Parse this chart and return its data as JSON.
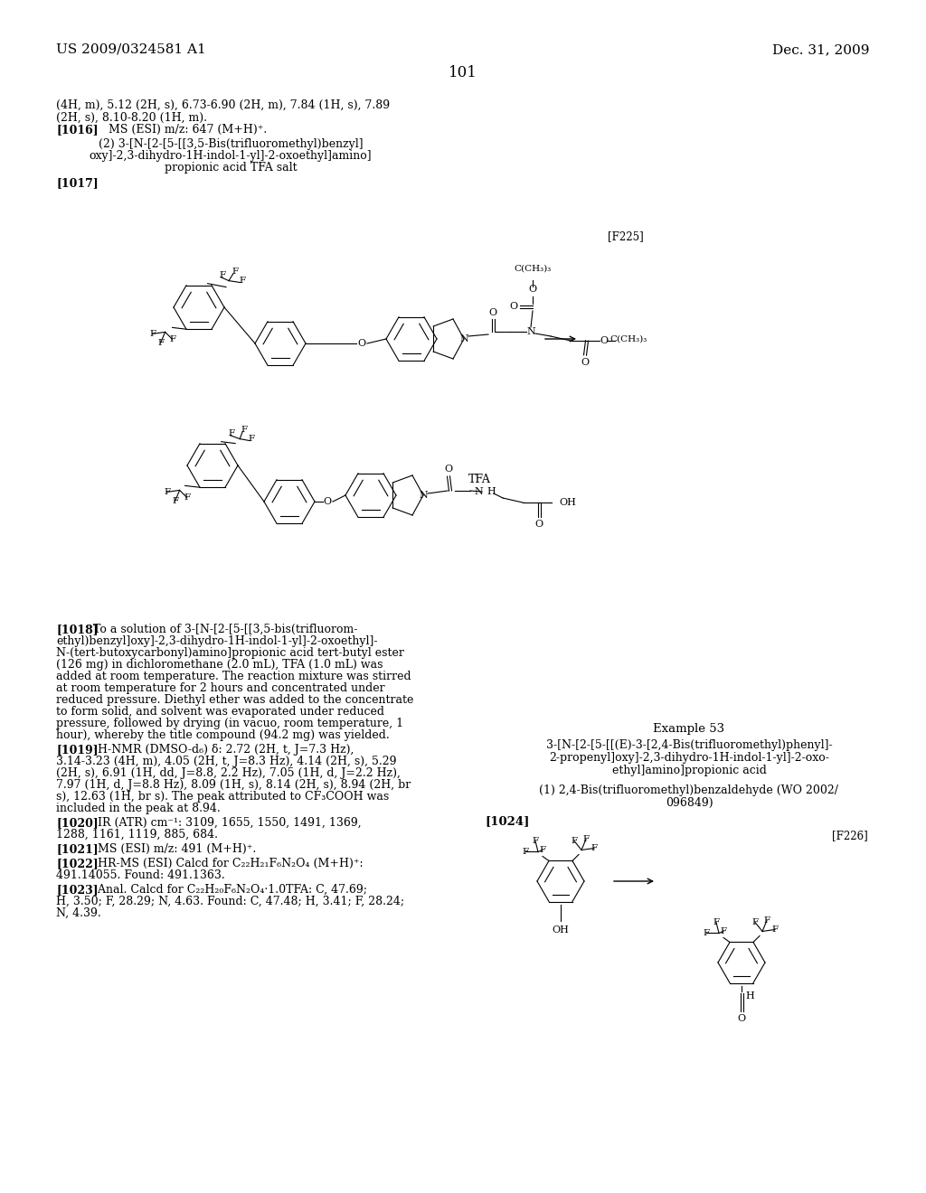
{
  "page_header_left": "US 2009/0324581 A1",
  "page_header_right": "Dec. 31, 2009",
  "page_number": "101",
  "background_color": "#ffffff",
  "text_color": "#000000"
}
